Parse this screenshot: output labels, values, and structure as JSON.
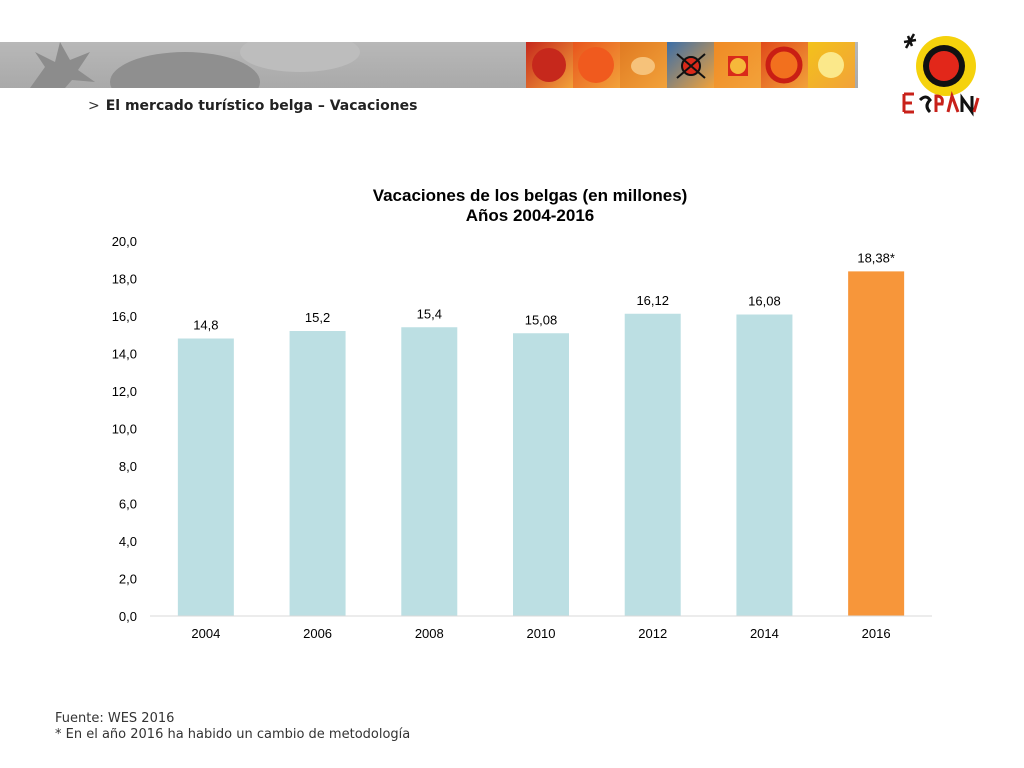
{
  "header": {
    "section_sep": ">",
    "section_title": "El mercado turístico belga – Vacaciones",
    "logo_text": "ESPAÑA",
    "banner_tile_colors": [
      "#c6281c",
      "#e8541c",
      "#e07a22",
      "#3a6ea8",
      "#f08a24",
      "#e04a1a",
      "#f3c21a"
    ]
  },
  "chart_data": {
    "type": "bar",
    "title": "Vacaciones de los belgas (en millones)",
    "subtitle": "Años 2004-2016",
    "categories": [
      "2004",
      "2006",
      "2008",
      "2010",
      "2012",
      "2014",
      "2016"
    ],
    "values": [
      14.8,
      15.2,
      15.4,
      15.08,
      16.12,
      16.08,
      18.38
    ],
    "data_labels": [
      "14,8",
      "15,2",
      "15,4",
      "15,08",
      "16,12",
      "16,08",
      "18,38*"
    ],
    "colors": [
      "#bcdfe3",
      "#bcdfe3",
      "#bcdfe3",
      "#bcdfe3",
      "#bcdfe3",
      "#bcdfe3",
      "#f7963a"
    ],
    "ylim": [
      0,
      20
    ],
    "yticks": [
      "0,0",
      "2,0",
      "4,0",
      "6,0",
      "8,0",
      "10,0",
      "12,0",
      "14,0",
      "16,0",
      "18,0",
      "20,0"
    ],
    "grid": false,
    "xlabel": "",
    "ylabel": ""
  },
  "footer": {
    "source": "Fuente: WES 2016",
    "note": "* En el año 2016 ha habido un cambio de metodología"
  }
}
